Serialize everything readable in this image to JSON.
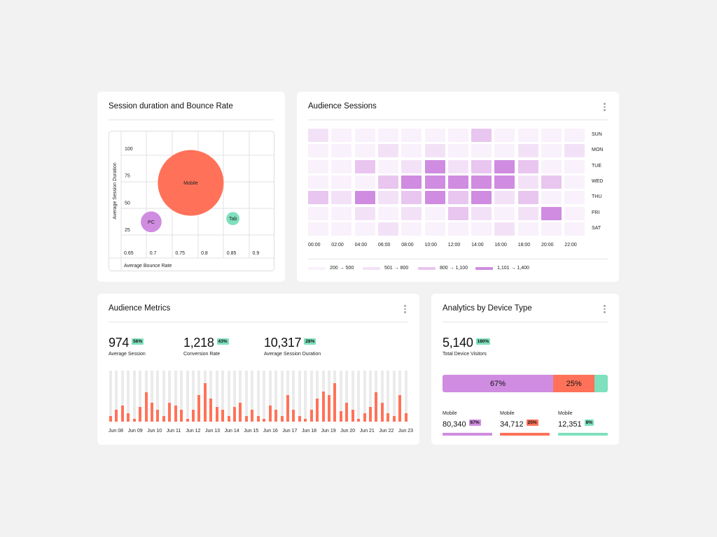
{
  "colors": {
    "orange": "#ff7259",
    "purple": "#cf8ce0",
    "teal": "#7ee0bc",
    "badge": "#7ee0bc"
  },
  "bubble_card": {
    "title": "Session duration and Bounce Rate"
  },
  "chart_data": [
    {
      "type": "scatter",
      "variant": "bubble",
      "xlabel": "Average Bounce Rate",
      "ylabel": "Average Session Duration",
      "x_ticks": [
        "0.65",
        "0.7",
        "0.75",
        "0.8",
        "0.85",
        "0.9"
      ],
      "y_ticks": [
        "100",
        "75",
        "50",
        "25"
      ],
      "grid": true,
      "points": [
        {
          "label": "Mobile",
          "x": 0.78,
          "y": 68,
          "size": 100,
          "color": "#ff7259"
        },
        {
          "label": "PC",
          "x": 0.703,
          "y": 32,
          "size": 10,
          "color": "#cf8ce0"
        },
        {
          "label": "Tab",
          "x": 0.862,
          "y": 35,
          "size": 4,
          "color": "#7ee0bc"
        }
      ]
    },
    {
      "type": "heatmap",
      "title": "Audience Sessions",
      "x_ticks": [
        "00:00",
        "02:00",
        "04:00",
        "06:00",
        "08:00",
        "10:00",
        "12:00",
        "14:00",
        "16:00",
        "18:00",
        "20:00",
        "22:00"
      ],
      "y_ticks": [
        "SUN",
        "MON",
        "TUE",
        "WED",
        "THU",
        "FRI",
        "SAT"
      ],
      "legend": [
        {
          "label": "200 → 500",
          "color": "#f9f1fb"
        },
        {
          "label": "501 → 800",
          "color": "#f3e2f7"
        },
        {
          "label": "800 → 1,100",
          "color": "#e8c6ef"
        },
        {
          "label": "1,101 → 1,400",
          "color": "#cf8ce0"
        }
      ],
      "levels": [
        [
          1,
          0,
          0,
          0,
          0,
          0,
          0,
          2,
          0,
          0,
          0,
          0
        ],
        [
          0,
          0,
          0,
          1,
          0,
          1,
          0,
          0,
          0,
          1,
          0,
          1
        ],
        [
          0,
          0,
          2,
          0,
          1,
          3,
          1,
          2,
          3,
          2,
          0,
          0
        ],
        [
          0,
          0,
          0,
          2,
          3,
          3,
          3,
          3,
          3,
          1,
          2,
          0
        ],
        [
          2,
          1,
          3,
          1,
          2,
          3,
          2,
          3,
          1,
          2,
          0,
          0
        ],
        [
          0,
          0,
          1,
          0,
          1,
          0,
          2,
          1,
          0,
          1,
          3,
          0
        ],
        [
          0,
          0,
          0,
          1,
          0,
          0,
          0,
          0,
          1,
          0,
          0,
          0
        ]
      ]
    },
    {
      "type": "bar",
      "x_ticks": [
        "Jun 08",
        "Jun 09",
        "Jun 10",
        "Jun 11",
        "Jun 12",
        "Jun 13",
        "Jun 14",
        "Jun 15",
        "Jun 16",
        "Jun 17",
        "Jun 18",
        "Jun 19",
        "Jun 20",
        "Jun 21",
        "Jun 22",
        "Jun 23"
      ],
      "ylim": [
        0,
        1
      ],
      "values": [
        0.11,
        0.23,
        0.32,
        0.17,
        0.06,
        0.29,
        0.57,
        0.37,
        0.23,
        0.11,
        0.37,
        0.32,
        0.23,
        0.06,
        0.23,
        0.52,
        0.76,
        0.45,
        0.29,
        0.23,
        0.11,
        0.29,
        0.37,
        0.11,
        0.23,
        0.11,
        0.06,
        0.32,
        0.23,
        0.11,
        0.52,
        0.23,
        0.11,
        0.06,
        0.23,
        0.45,
        0.59,
        0.52,
        0.76,
        0.2,
        0.37,
        0.23,
        0.06,
        0.17,
        0.29,
        0.57,
        0.37,
        0.17,
        0.11,
        0.52,
        0.17
      ]
    }
  ],
  "heatmap_card": {
    "title": "Audience Sessions"
  },
  "metrics_card": {
    "title": "Audience Metrics",
    "metrics": [
      {
        "value": "974",
        "badge": "56%",
        "label": "Average Session"
      },
      {
        "value": "1,218",
        "badge": "43%",
        "label": "Conversion Rate"
      },
      {
        "value": "10,317",
        "badge": "28%",
        "label": "Average Session Duration"
      }
    ]
  },
  "device_card": {
    "title": "Analytics by Device Type",
    "total": "5,140",
    "total_badge": "180%",
    "total_label": "Total Device Visitors",
    "segments": [
      {
        "pct": 67,
        "label": "67%",
        "color": "#cf8ce0"
      },
      {
        "pct": 25,
        "label": "25%",
        "color": "#ff7259"
      },
      {
        "pct": 8,
        "label": "",
        "color": "#7ee0bc"
      }
    ],
    "devices": [
      {
        "name": "Mobile",
        "value": "80,340",
        "badge": "67%",
        "color": "#cf8ce0"
      },
      {
        "name": "Mobile",
        "value": "34,712",
        "badge": "25%",
        "color": "#ff7259"
      },
      {
        "name": "Mobile",
        "value": "12,351",
        "badge": "8%",
        "color": "#7ee0bc"
      }
    ]
  }
}
